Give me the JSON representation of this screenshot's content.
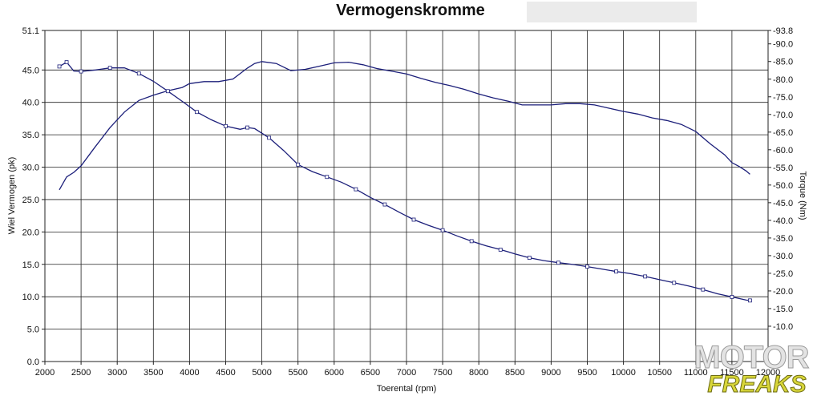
{
  "chart_data": {
    "type": "line",
    "title": "Vermogenskromme",
    "xlabel": "Toerental (rpm)",
    "ylabel_left": "Wiel Vermogen (pk)",
    "ylabel_right": "Torque (Nm)",
    "xlim": [
      2000,
      12000
    ],
    "ylim_left": [
      0,
      51.1
    ],
    "ylim_right": [
      0,
      93.8
    ],
    "x_ticks": [
      "2000",
      "2500",
      "3000",
      "3500",
      "4000",
      "4500",
      "5000",
      "5500",
      "6000",
      "6500",
      "7000",
      "7500",
      "8000",
      "8500",
      "9000",
      "9500",
      "10000",
      "10500",
      "11000",
      "11500",
      "12000"
    ],
    "y_left_ticks": [
      "0.0",
      "5.0",
      "10.0",
      "15.0",
      "20.0",
      "25.0",
      "30.0",
      "35.0",
      "40.0",
      "45.0",
      "51.1"
    ],
    "y_right_ticks": [
      "10.0",
      "15.0",
      "20.0",
      "25.0",
      "30.0",
      "35.0",
      "40.0",
      "45.0",
      "50.0",
      "55.0",
      "60.0",
      "65.0",
      "70.0",
      "75.0",
      "80.0",
      "85.0",
      "90.0",
      "93.8"
    ],
    "grid": true,
    "series": [
      {
        "axis": "left",
        "x": [
          2200,
          2300,
          2400,
          2500,
          2700,
          2900,
          3100,
          3300,
          3500,
          3700,
          3900,
          4000,
          4200,
          4400,
          4600,
          4800,
          4900,
          5000,
          5200,
          5400,
          5600,
          5800,
          6000,
          6200,
          6400,
          6600,
          6800,
          7000,
          7200,
          7400,
          7600,
          7800,
          8000,
          8200,
          8400,
          8600,
          8800,
          9000,
          9200,
          9400,
          9600,
          9800,
          10000,
          10200,
          10400,
          10600,
          10800,
          11000,
          11200,
          11400,
          11500,
          11600,
          11700,
          11750
        ],
        "y": [
          26.5,
          28.5,
          29.2,
          30.2,
          33.2,
          36.1,
          38.5,
          40.3,
          41.1,
          41.8,
          42.3,
          42.9,
          43.2,
          43.2,
          43.6,
          45.3,
          46.0,
          46.3,
          46.0,
          44.9,
          45.1,
          45.6,
          46.1,
          46.2,
          45.8,
          45.2,
          44.8,
          44.4,
          43.7,
          43.1,
          42.6,
          42.0,
          41.3,
          40.7,
          40.2,
          39.6,
          39.6,
          39.6,
          39.8,
          39.8,
          39.6,
          39.1,
          38.6,
          38.2,
          37.6,
          37.2,
          36.6,
          35.5,
          33.6,
          31.9,
          30.7,
          30.1,
          29.4,
          28.9
        ]
      },
      {
        "axis": "right",
        "x": [
          2200,
          2300,
          2400,
          2500,
          2700,
          2900,
          3100,
          3300,
          3500,
          3700,
          3900,
          4100,
          4300,
          4500,
          4700,
          4800,
          4900,
          5100,
          5300,
          5500,
          5700,
          5900,
          6100,
          6300,
          6500,
          6700,
          6900,
          7100,
          7300,
          7500,
          7700,
          7900,
          8100,
          8300,
          8500,
          8700,
          8900,
          9100,
          9300,
          9500,
          9700,
          9900,
          10100,
          10300,
          10500,
          10700,
          10900,
          11100,
          11300,
          11500,
          11700,
          11750
        ],
        "y": [
          83.6,
          84.8,
          82.3,
          82.2,
          82.6,
          83.2,
          83.2,
          81.6,
          79.4,
          76.6,
          73.7,
          70.7,
          68.5,
          66.7,
          65.8,
          66.3,
          66.0,
          63.4,
          59.8,
          55.8,
          53.8,
          52.3,
          50.8,
          48.8,
          46.5,
          44.5,
          42.3,
          40.2,
          38.6,
          37.2,
          35.6,
          34.1,
          32.8,
          31.7,
          30.5,
          29.4,
          28.6,
          28.0,
          27.5,
          26.9,
          26.2,
          25.5,
          24.9,
          24.1,
          23.2,
          22.3,
          21.4,
          20.4,
          19.2,
          18.3,
          17.4,
          17.3
        ]
      }
    ]
  }
}
